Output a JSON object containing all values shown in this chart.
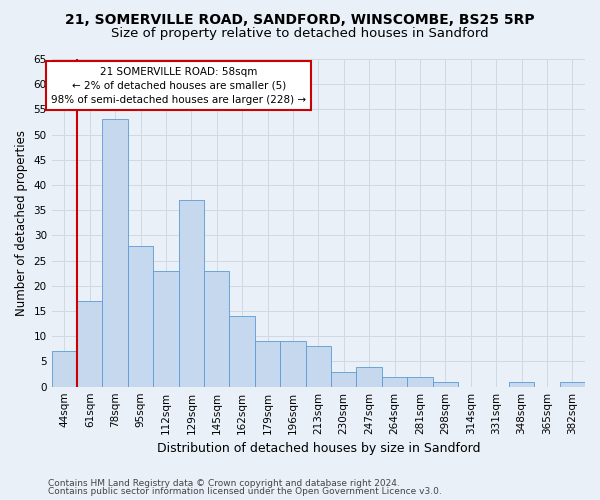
{
  "title1": "21, SOMERVILLE ROAD, SANDFORD, WINSCOMBE, BS25 5RP",
  "title2": "Size of property relative to detached houses in Sandford",
  "xlabel": "Distribution of detached houses by size in Sandford",
  "ylabel": "Number of detached properties",
  "categories": [
    "44sqm",
    "61sqm",
    "78sqm",
    "95sqm",
    "112sqm",
    "129sqm",
    "145sqm",
    "162sqm",
    "179sqm",
    "196sqm",
    "213sqm",
    "230sqm",
    "247sqm",
    "264sqm",
    "281sqm",
    "298sqm",
    "314sqm",
    "331sqm",
    "348sqm",
    "365sqm",
    "382sqm"
  ],
  "values": [
    7,
    17,
    53,
    28,
    23,
    37,
    23,
    14,
    9,
    9,
    8,
    3,
    4,
    2,
    2,
    1,
    0,
    0,
    1,
    0,
    1
  ],
  "bar_color": "#c5d8ed",
  "bar_edge_color": "#5b9bd5",
  "grid_color": "#d0d8e4",
  "background_color": "#eaf0f8",
  "vline_color": "#cc0000",
  "annotation_text": "21 SOMERVILLE ROAD: 58sqm\n← 2% of detached houses are smaller (5)\n98% of semi-detached houses are larger (228) →",
  "annotation_box_color": "#ffffff",
  "annotation_box_edge": "#cc0000",
  "ylim": [
    0,
    65
  ],
  "yticks": [
    0,
    5,
    10,
    15,
    20,
    25,
    30,
    35,
    40,
    45,
    50,
    55,
    60,
    65
  ],
  "footer1": "Contains HM Land Registry data © Crown copyright and database right 2024.",
  "footer2": "Contains public sector information licensed under the Open Government Licence v3.0.",
  "title1_fontsize": 10,
  "title2_fontsize": 9.5,
  "xlabel_fontsize": 9,
  "ylabel_fontsize": 8.5,
  "tick_fontsize": 7.5,
  "annotation_fontsize": 7.5,
  "footer_fontsize": 6.5
}
